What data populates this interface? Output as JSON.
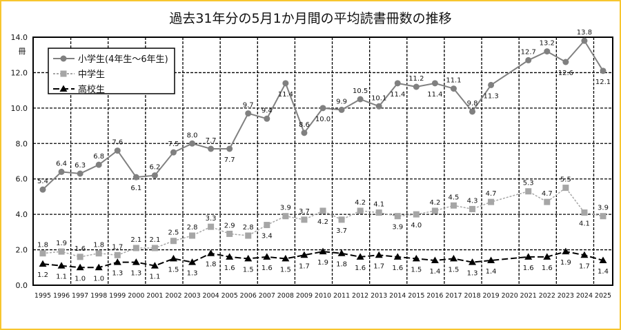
{
  "chart_data": {
    "type": "line",
    "title": "過去31年分の5月1か月間の平均読書冊数の推移",
    "ylabel": "冊",
    "ylim": [
      0,
      14
    ],
    "yticks": [
      "0.0",
      "2.0",
      "4.0",
      "6.0",
      "8.0",
      "10.0",
      "12.0",
      "14.0"
    ],
    "grid": true,
    "legend_position": "top-left",
    "categories": [
      "1995",
      "1996",
      "1997",
      "1998",
      "1999",
      "2000",
      "2001",
      "2002",
      "2003",
      "2004",
      "2005",
      "2006",
      "2007",
      "2008",
      "2009",
      "2010",
      "2011",
      "2012",
      "2013",
      "2014",
      "2015",
      "2016",
      "2017",
      "2018",
      "2019",
      "2020",
      "2021",
      "2022",
      "2023",
      "2024",
      "2025"
    ],
    "series": [
      {
        "name": "小学生(4年生～6年生)",
        "marker": "circle",
        "color": "#808080",
        "style": "solid",
        "values": [
          5.4,
          6.4,
          6.3,
          6.8,
          7.6,
          6.1,
          6.2,
          7.5,
          8.0,
          7.7,
          7.7,
          9.7,
          9.4,
          11.4,
          8.6,
          10.0,
          9.9,
          10.5,
          10.1,
          11.4,
          11.2,
          11.4,
          11.1,
          9.8,
          11.3,
          null,
          12.7,
          13.2,
          12.6,
          13.8,
          12.1
        ]
      },
      {
        "name": "中学生",
        "marker": "square",
        "color": "#a6a6a6",
        "style": "dotted",
        "values": [
          1.8,
          1.9,
          1.6,
          1.8,
          1.7,
          2.1,
          2.1,
          2.5,
          2.8,
          3.3,
          2.9,
          2.8,
          3.4,
          3.9,
          3.7,
          4.2,
          3.7,
          4.2,
          4.1,
          3.9,
          4.0,
          4.2,
          4.5,
          4.3,
          4.7,
          null,
          5.3,
          4.7,
          5.5,
          4.1,
          3.9
        ]
      },
      {
        "name": "高校生",
        "marker": "triangle",
        "color": "#000000",
        "style": "dashed",
        "values": [
          1.2,
          1.1,
          1.0,
          1.0,
          1.3,
          1.3,
          1.1,
          1.5,
          1.3,
          1.8,
          1.6,
          1.5,
          1.6,
          1.5,
          1.7,
          1.9,
          1.8,
          1.6,
          1.7,
          1.6,
          1.5,
          1.4,
          1.5,
          1.3,
          1.4,
          null,
          1.6,
          1.6,
          1.9,
          1.7,
          1.4
        ]
      }
    ]
  },
  "colors": {
    "frame_border": "#f7c62f"
  }
}
